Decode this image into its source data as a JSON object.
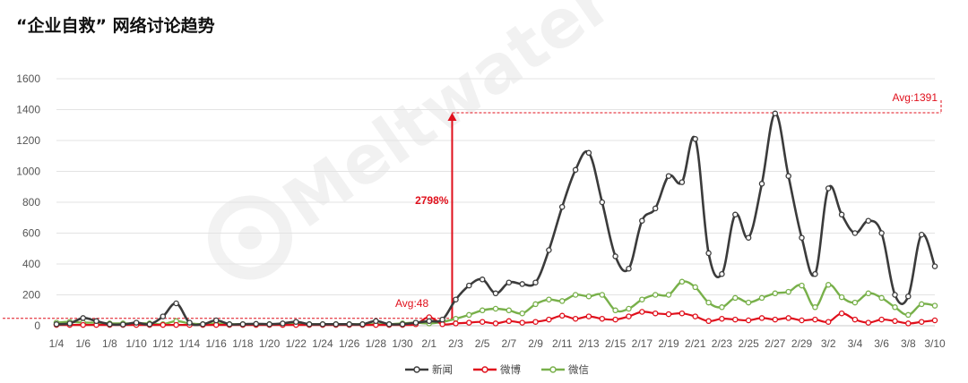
{
  "title": "“企业自救” 网络讨论趋势",
  "watermark": "Meltwater",
  "chart_data": {
    "type": "line",
    "title": "“企业自救” 网络讨论趋势",
    "ylim": [
      0,
      1600
    ],
    "yticks": [
      0,
      200,
      400,
      600,
      800,
      1000,
      1200,
      1400,
      1600
    ],
    "x": [
      "1/4",
      "1/5",
      "1/6",
      "1/7",
      "1/8",
      "1/9",
      "1/10",
      "1/11",
      "1/12",
      "1/13",
      "1/14",
      "1/15",
      "1/16",
      "1/17",
      "1/18",
      "1/19",
      "1/20",
      "1/21",
      "1/22",
      "1/23",
      "1/24",
      "1/25",
      "1/26",
      "1/27",
      "1/28",
      "1/29",
      "1/30",
      "1/31",
      "2/1",
      "2/2",
      "2/3",
      "2/4",
      "2/5",
      "2/6",
      "2/7",
      "2/8",
      "2/9",
      "2/10",
      "2/11",
      "2/12",
      "2/13",
      "2/14",
      "2/15",
      "2/16",
      "2/17",
      "2/18",
      "2/19",
      "2/20",
      "2/21",
      "2/22",
      "2/23",
      "2/24",
      "2/25",
      "2/26",
      "2/27",
      "2/28",
      "2/29",
      "3/1",
      "3/2",
      "3/3",
      "3/4",
      "3/5",
      "3/6",
      "3/7",
      "3/8",
      "3/9",
      "3/10"
    ],
    "tick_labels": [
      "1/4",
      "1/6",
      "1/8",
      "1/10",
      "1/12",
      "1/14",
      "1/16",
      "1/18",
      "1/20",
      "1/22",
      "1/24",
      "1/26",
      "1/28",
      "1/30",
      "2/1",
      "2/3",
      "2/5",
      "2/7",
      "2/9",
      "2/11",
      "2/13",
      "2/15",
      "2/17",
      "2/19",
      "2/21",
      "2/23",
      "2/25",
      "2/27",
      "2/29",
      "3/2",
      "3/4",
      "3/6",
      "3/8",
      "3/10"
    ],
    "grid": true,
    "legend_position": "bottom",
    "series": [
      {
        "name": "新闻",
        "color": "#3b3b3b",
        "width": 2.6,
        "values": [
          10,
          15,
          50,
          30,
          10,
          8,
          20,
          10,
          60,
          145,
          20,
          10,
          35,
          10,
          10,
          12,
          10,
          15,
          25,
          10,
          10,
          10,
          10,
          10,
          30,
          10,
          10,
          20,
          30,
          40,
          170,
          260,
          300,
          210,
          280,
          270,
          280,
          490,
          770,
          1010,
          1120,
          800,
          450,
          370,
          680,
          760,
          970,
          930,
          1210,
          470,
          335,
          720,
          570,
          920,
          1375,
          970,
          570,
          335,
          890,
          720,
          600,
          680,
          600,
          200,
          190,
          590,
          385
        ]
      },
      {
        "name": "微博",
        "color": "#e0101c",
        "width": 2.2,
        "values": [
          5,
          5,
          5,
          5,
          5,
          5,
          5,
          5,
          5,
          5,
          5,
          5,
          5,
          5,
          5,
          5,
          5,
          5,
          5,
          5,
          5,
          5,
          5,
          5,
          5,
          5,
          5,
          10,
          55,
          10,
          15,
          20,
          25,
          15,
          30,
          20,
          25,
          40,
          65,
          45,
          60,
          45,
          40,
          60,
          90,
          80,
          75,
          80,
          60,
          30,
          45,
          40,
          35,
          50,
          40,
          50,
          35,
          40,
          25,
          80,
          40,
          20,
          40,
          30,
          15,
          25,
          35
        ]
      },
      {
        "name": "微信",
        "color": "#78b04a",
        "width": 2.4,
        "values": [
          20,
          25,
          20,
          20,
          15,
          15,
          15,
          15,
          10,
          30,
          15,
          10,
          15,
          10,
          10,
          10,
          10,
          10,
          15,
          10,
          10,
          10,
          10,
          10,
          10,
          10,
          15,
          20,
          15,
          25,
          45,
          70,
          100,
          110,
          100,
          80,
          140,
          170,
          160,
          200,
          190,
          200,
          100,
          110,
          170,
          200,
          200,
          285,
          250,
          150,
          120,
          180,
          150,
          180,
          210,
          220,
          260,
          120,
          265,
          185,
          150,
          210,
          180,
          120,
          70,
          140,
          130
        ]
      }
    ],
    "annotations": [
      {
        "type": "avg_line",
        "label": "Avg:48",
        "value": 48,
        "color": "#e0101c"
      },
      {
        "type": "avg_line",
        "label": "Avg:1391",
        "value": 1391,
        "color": "#e0101c"
      },
      {
        "type": "arrow",
        "label": "2798%",
        "from": 48,
        "to": 1380,
        "at": "2/3",
        "color": "#e0101c"
      }
    ]
  }
}
